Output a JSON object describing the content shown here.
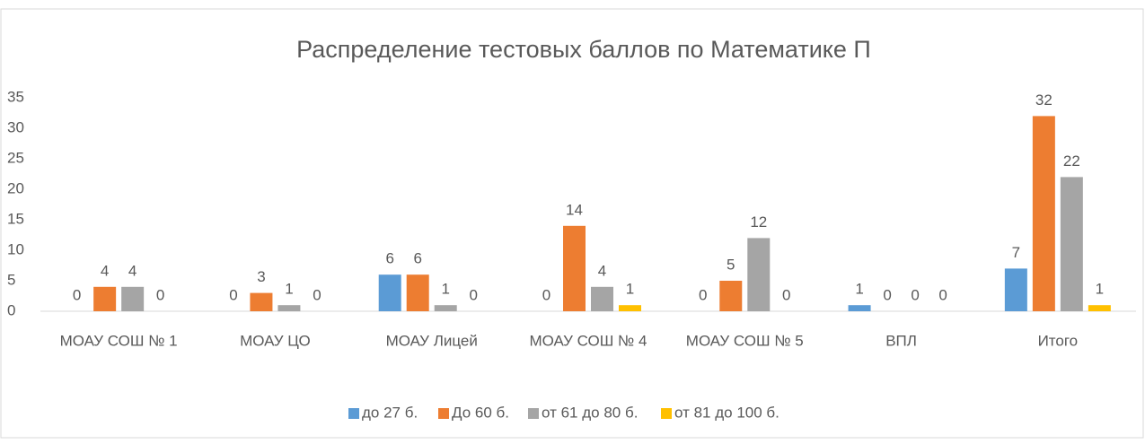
{
  "chart_data": {
    "type": "bar",
    "title": "Распределение тестовых баллов по Математике П",
    "categories": [
      "МОАУ СОШ № 1",
      "МОАУ ЦО",
      "МОАУ Лицей",
      "МОАУ СОШ № 4",
      "МОАУ СОШ № 5",
      "ВПЛ",
      "Итого"
    ],
    "series": [
      {
        "name": "до 27 б.",
        "color": "#5b9bd5",
        "values": [
          0,
          0,
          6,
          0,
          0,
          1,
          7
        ]
      },
      {
        "name": "До 60 б.",
        "color": "#ed7d31",
        "values": [
          4,
          3,
          6,
          14,
          5,
          0,
          32
        ]
      },
      {
        "name": "от 61 до 80 б.",
        "color": "#a5a5a5",
        "values": [
          4,
          1,
          1,
          4,
          12,
          0,
          22
        ]
      },
      {
        "name": "от 81 до 100 б.",
        "color": "#ffc000",
        "values": [
          0,
          0,
          0,
          1,
          0,
          0,
          1
        ]
      }
    ],
    "ylim": [
      0,
      35
    ],
    "yticks": [
      0,
      5,
      10,
      15,
      20,
      25,
      30,
      35
    ],
    "grid": false,
    "legend": "bottom"
  }
}
